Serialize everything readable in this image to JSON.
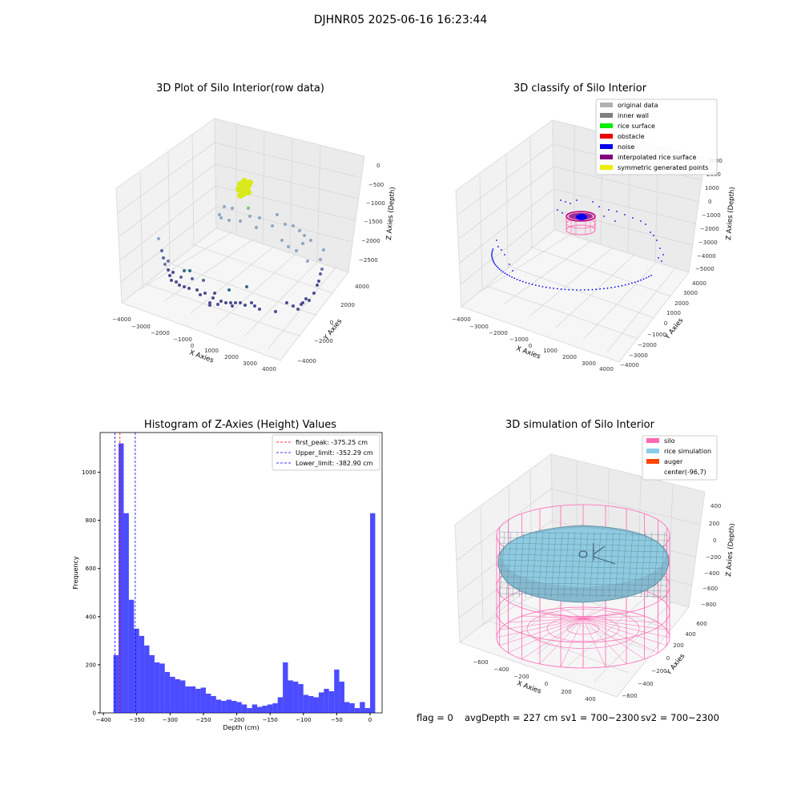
{
  "figure": {
    "suptitle": "DJHNR05 2025-06-16 16:23:44"
  },
  "panels": {
    "raw": {
      "title": "3D Plot of Silo Interior(row data)",
      "x_label": "X Axies",
      "y_label": "Y Axies",
      "z_label": "Z Axies (Depth)",
      "x_ticks": [
        "−4000",
        "−3000",
        "−2000",
        "−1000",
        "0",
        "1000",
        "2000",
        "3000",
        "4000"
      ],
      "y_ticks": [
        "−4000",
        "−2000",
        "0",
        "2000",
        "4000"
      ],
      "z_ticks": [
        "0",
        "−500",
        "−1000",
        "−1500",
        "−2000",
        "−2500"
      ]
    },
    "classify": {
      "title": "3D classify of Silo Interior",
      "x_label": "X Axies",
      "y_label": "Y Axies",
      "z_label": "Z Axies (Depth)",
      "x_ticks": [
        "−4000",
        "−3000",
        "−2000",
        "−1000",
        "0",
        "1000",
        "2000",
        "3000",
        "4000"
      ],
      "y_ticks": [
        "−4000",
        "−3000",
        "−2000",
        "−1000",
        "0",
        "1000",
        "2000",
        "3000",
        "4000"
      ],
      "z_ticks": [
        "3000",
        "2000",
        "1000",
        "0",
        "−1000",
        "−2000",
        "−3000",
        "−4000",
        "−5000"
      ],
      "legend": [
        {
          "label": "original data",
          "color": "#b0b0b0"
        },
        {
          "label": "inner wall",
          "color": "#808080"
        },
        {
          "label": "rice surface",
          "color": "#00ee00"
        },
        {
          "label": "obstacle",
          "color": "#ee0000"
        },
        {
          "label": "noise",
          "color": "#0000ee"
        },
        {
          "label": "interpolated rice surface",
          "color": "#800080"
        },
        {
          "label": "symmetric generated points",
          "color": "#eeee00"
        }
      ]
    },
    "simulation": {
      "title": "3D simulation of Silo Interior",
      "x_label": "X Axies",
      "y_label": "Y Axies",
      "z_label": "Z Axies (Depth)",
      "x_ticks": [
        "−600",
        "−400",
        "−200",
        "0",
        "200",
        "400"
      ],
      "y_ticks": [
        "−600",
        "−400",
        "−200",
        "0",
        "200",
        "400",
        "600"
      ],
      "z_ticks": [
        "400",
        "200",
        "0",
        "−200",
        "−400",
        "−600",
        "−800"
      ],
      "legend": [
        {
          "label": "silo",
          "color": "#ff69b4"
        },
        {
          "label": "rice simulation",
          "color": "#87ceeb"
        },
        {
          "label": "auger",
          "color": "#ff4500"
        },
        {
          "label": "center(-96,7)",
          "color": ""
        }
      ]
    }
  },
  "footer": {
    "flag": "flag = 0",
    "avg": "avgDepth = 227 cm",
    "sv1": "sv1 = 700~2300",
    "sv2": "sv2 = 700~2300"
  },
  "chart_data": {
    "type": "bar",
    "title": "Histogram of Z-Axies (Height) Values",
    "xlabel": "Depth (cm)",
    "ylabel": "Frequency",
    "xlim": [
      -405,
      18
    ],
    "ylim": [
      0,
      1165
    ],
    "x_ticks": [
      -400,
      -350,
      -300,
      -250,
      -200,
      -150,
      -100,
      -50,
      0
    ],
    "y_ticks": [
      0,
      200,
      400,
      600,
      800,
      1000
    ],
    "bin_start": -385,
    "bin_width": 7.7,
    "bar_color": "#0000ff",
    "values": [
      240,
      1120,
      830,
      470,
      350,
      320,
      280,
      240,
      210,
      205,
      170,
      150,
      140,
      135,
      110,
      110,
      100,
      105,
      80,
      70,
      55,
      50,
      55,
      50,
      45,
      35,
      20,
      35,
      25,
      30,
      35,
      40,
      65,
      210,
      135,
      130,
      120,
      75,
      70,
      65,
      85,
      100,
      90,
      180,
      130,
      45,
      40,
      20,
      45,
      20,
      830
    ],
    "vlines": [
      {
        "label": "first_peak: -375.25 cm",
        "x": -375.25,
        "color": "#ff0000"
      },
      {
        "label": "Upper_limit: -352.29 cm",
        "x": -352.29,
        "color": "#0000ff"
      },
      {
        "label": "Lower_limit: -382.90 cm",
        "x": -382.9,
        "color": "#0000ff"
      }
    ]
  }
}
